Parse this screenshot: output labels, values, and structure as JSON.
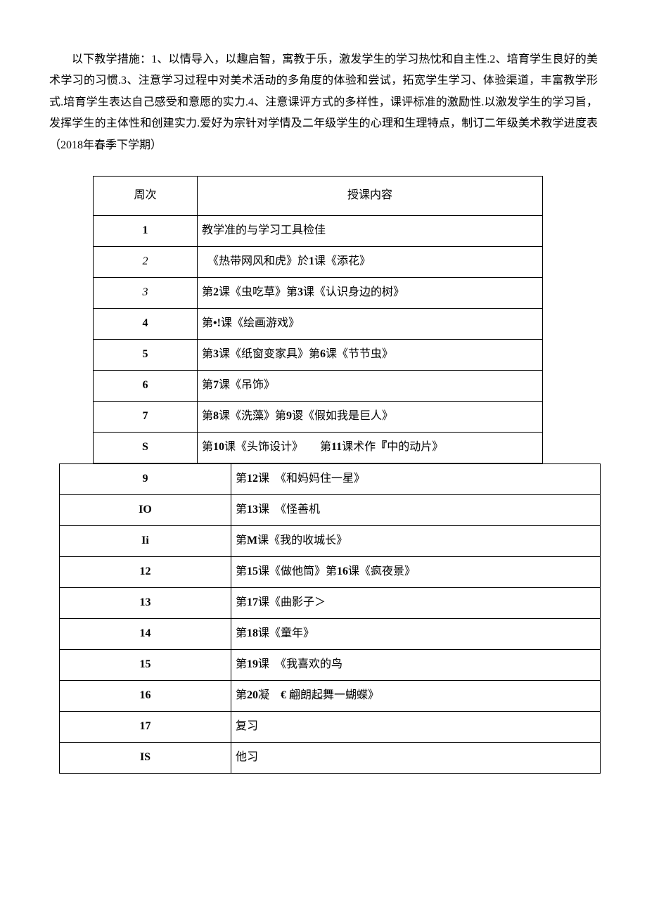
{
  "intro": "以下教学措施：1、以情导入，以趣启智，寓教于乐，激发学生的学习热忱和自主性.2、培育学生良好的美术学习的习惯.3、注意学习过程中对美术活动的多角度的体验和尝试，拓宽学生学习、体验渠道，丰富教学形式.培育学生表达自己感受和意愿的实力.4、注意课评方式的多样性，课评标准的激励性.以激发学生的学习旨，发挥学生的主体性和创建实力.爱好为宗针对学情及二年级学生的心理和生理特点，制订二年级美术教学进度表（2018年春季下学期）",
  "headers": {
    "week": "周次",
    "content": "授课内容"
  },
  "rows_upper": [
    {
      "week": "1",
      "content": "教学准的与学习工具检佳",
      "style": "bold"
    },
    {
      "week": "2",
      "content": "　《热带网风和虎》於1课《添花》",
      "style": "italic"
    },
    {
      "week": "3",
      "content": "第2课《虫吃草》第3课《认识身边的树》",
      "style": "italic"
    },
    {
      "week": "4",
      "content": "第•!课《绘画游戏》",
      "style": "bold"
    },
    {
      "week": "5",
      "content": "第3课《纸窗变家具》第6课《节节虫》",
      "style": "bold"
    },
    {
      "week": "6",
      "content": "第7课《吊饰》",
      "style": "bold"
    },
    {
      "week": "7",
      "content": "第8课《洗藻》第9谡《假如我是巨人》",
      "style": "bold"
    },
    {
      "week": "S",
      "content": "第10课《头饰设计》　　第11课术作『中的动片》",
      "style": "bold"
    }
  ],
  "rows_lower": [
    {
      "week": "9",
      "content": "第12课　《和妈妈住一星》"
    },
    {
      "week": "IO",
      "content": "第13课　《怪善机"
    },
    {
      "week": "Ii",
      "content": "第M课《我的收城长》"
    },
    {
      "week": "12",
      "content": "第15课《做他筒》第16课《疯夜景》"
    },
    {
      "week": "13",
      "content": "第17课《曲影子＞"
    },
    {
      "week": "14",
      "content": "第18课《童年》"
    },
    {
      "week": "15",
      "content": "第19课　《我喜欢的鸟"
    },
    {
      "week": "16",
      "content": "第20凝　€ 翩朗起舞一蝴蝶》"
    },
    {
      "week": "17",
      "content": "复习"
    },
    {
      "week": "IS",
      "content": "他习"
    }
  ]
}
